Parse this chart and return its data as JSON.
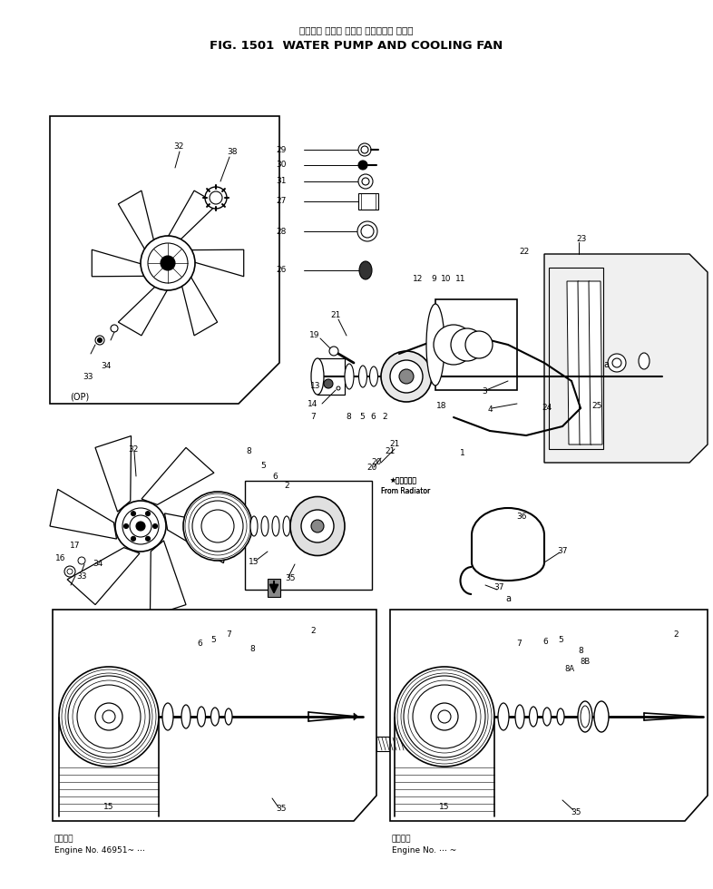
{
  "title_japanese": "ウォータ ポンプ および クーリング ファン",
  "title_english": "FIG. 1501  WATER PUMP AND COOLING FAN",
  "bg_color": "#ffffff",
  "line_color": "#000000",
  "fig_width": 7.86,
  "fig_height": 9.8,
  "engine_note_left_jp": "適用号等",
  "engine_note_left_en": "Engine No. 46951~ ⋯",
  "engine_note_right_jp": "適用号等",
  "engine_note_right_en": "Engine No. ⋯ ~"
}
